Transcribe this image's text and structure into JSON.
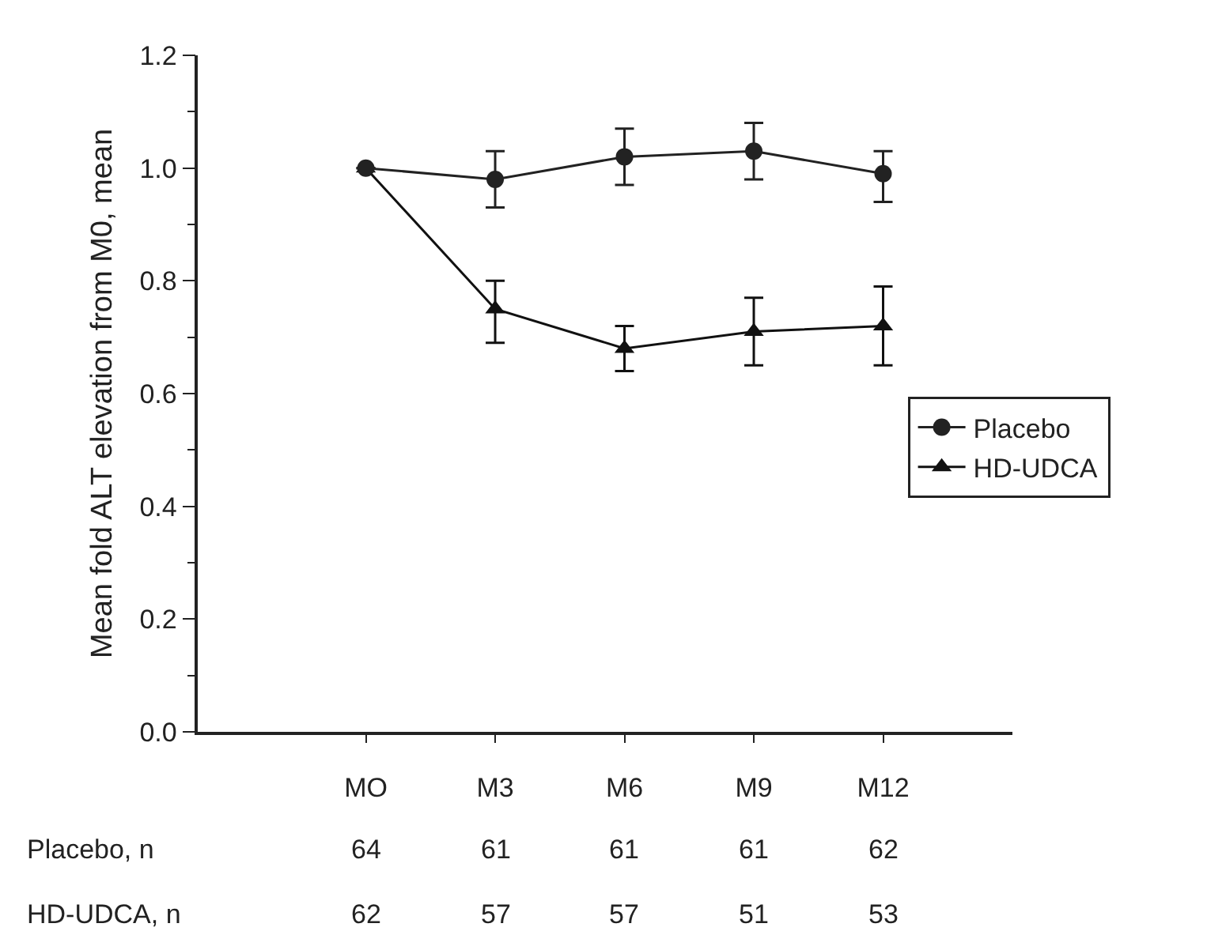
{
  "chart_data": {
    "type": "line",
    "ylabel": "Mean fold ALT elevation from M0, mean",
    "categories": [
      "MO",
      "M3",
      "M6",
      "M9",
      "M12"
    ],
    "ylim": [
      0,
      1.2
    ],
    "yticks": [
      {
        "value": 0,
        "label": "0.0"
      },
      {
        "value": 0.2,
        "label": "0.2"
      },
      {
        "value": 0.4,
        "label": "0.4"
      },
      {
        "value": 0.6,
        "label": "0.6"
      },
      {
        "value": 0.8,
        "label": "0.8"
      },
      {
        "value": 1.0,
        "label": "1.0"
      },
      {
        "value": 1.2,
        "label": "1.2"
      }
    ],
    "series": [
      {
        "name": "Placebo",
        "color": "#222222",
        "marker": "circle",
        "values": [
          1.0,
          0.98,
          1.02,
          1.03,
          0.99
        ],
        "errors": [
          null,
          [
            0.93,
            1.03
          ],
          [
            0.97,
            1.07
          ],
          [
            0.98,
            1.08
          ],
          [
            0.94,
            1.03
          ]
        ]
      },
      {
        "name": "HD-UDCA",
        "color": "#111111",
        "marker": "triangle",
        "values": [
          1.0,
          0.75,
          0.68,
          0.71,
          0.72
        ],
        "errors": [
          null,
          [
            0.69,
            0.8
          ],
          [
            0.64,
            0.72
          ],
          [
            0.65,
            0.77
          ],
          [
            0.65,
            0.79
          ]
        ]
      }
    ],
    "annotations": [
      "Placebo, n",
      "64",
      "61",
      "61",
      "61",
      "62",
      "HD-UDCA, n",
      "62",
      "57",
      "57",
      "51",
      "53"
    ],
    "legend": "right",
    "line_style": "solid"
  }
}
